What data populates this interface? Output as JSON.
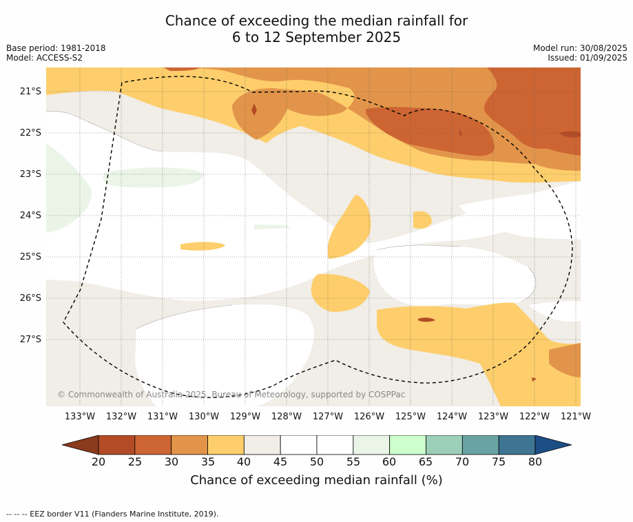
{
  "title": {
    "line1": "Chance of exceeding the median rainfall for",
    "line2": "6 to 12 September 2025"
  },
  "meta_left": {
    "base_period": "Base period: 1981-2018",
    "model": "Model: ACCESS-S2"
  },
  "meta_right": {
    "model_run": "Model run: 30/08/2025",
    "issued": "Issued: 01/09/2025"
  },
  "map": {
    "latitude_labels": [
      "21°S",
      "22°S",
      "23°S",
      "24°S",
      "25°S",
      "26°S",
      "27°S"
    ],
    "longitude_labels": [
      "133°W",
      "132°W",
      "131°W",
      "130°W",
      "129°W",
      "128°W",
      "127°W",
      "126°W",
      "125°W",
      "124°W",
      "123°W",
      "122°W",
      "121°W"
    ],
    "copyright": "© Commonwealth of Australia 2025, Bureau of Meteorology, supported by COSPPac",
    "colors": {
      "c20_25": "#b34c26",
      "c25_30": "#cd6533",
      "c30_35": "#e2954a",
      "c35_40": "#fdce6b",
      "c40_45": "#f1ede7",
      "c45_55": "#ffffff",
      "c55_60": "#eaf5e8",
      "gridline": "#555555",
      "eez_border": "#000000"
    }
  },
  "colorbar": {
    "ticks": [
      "20",
      "25",
      "30",
      "35",
      "40",
      "45",
      "50",
      "55",
      "60",
      "65",
      "70",
      "75",
      "80"
    ],
    "colors": [
      "#b34c26",
      "#cd6533",
      "#e2954a",
      "#fdce6b",
      "#f1ede7",
      "#ffffff",
      "#ffffff",
      "#eaf5e8",
      "#ccffcc",
      "#9ccfb8",
      "#6aa3a4",
      "#3e7592"
    ],
    "extend_low_color": "#8b3a1e",
    "extend_high_color": "#1d4f87",
    "label": "Chance of exceeding median rainfall (%)"
  },
  "footer": "--  --  -- EEZ border V11 (Flanders Marine Institute, 2019)."
}
